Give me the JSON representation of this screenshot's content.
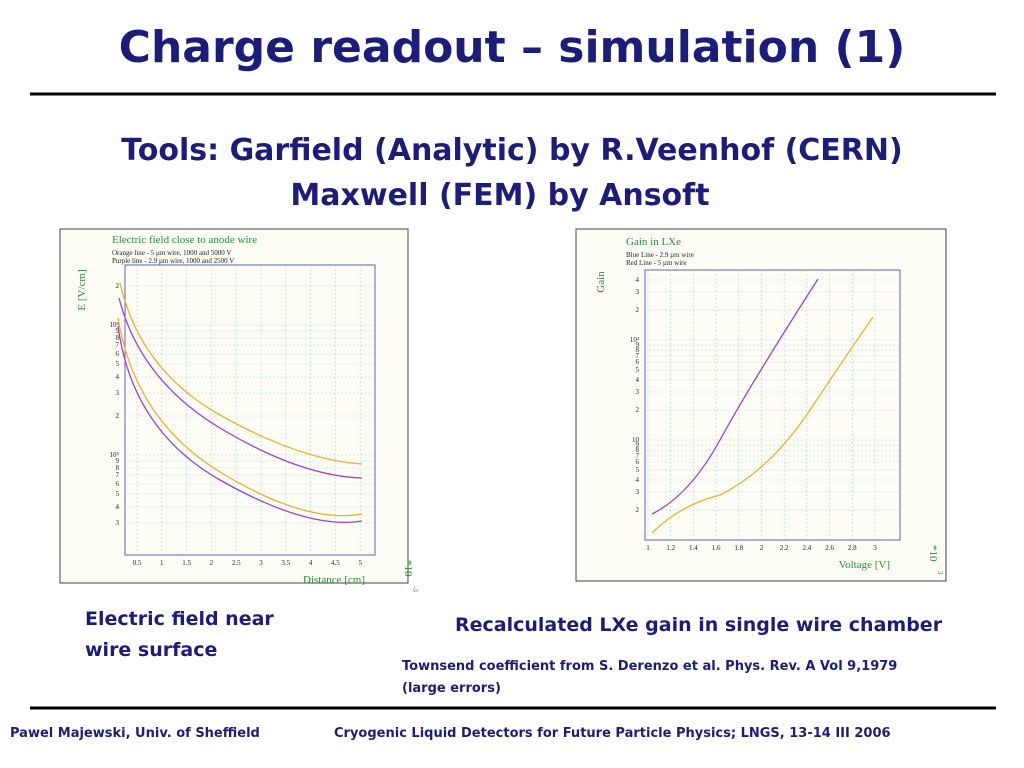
{
  "header": {
    "title": "Charge readout – simulation (1)"
  },
  "subtitle": [
    "Tools: Garfield (Analytic) by R.Veenhof (CERN)",
    "Maxwell (FEM) by Ansoft"
  ],
  "plots": [
    {
      "title": "Electric field close to anode wire",
      "legend": [
        "Orange line - 5 µm wire, 1000 and 5000 V",
        "Purple line - 2.9 µm wire, 1000 and 2500 V"
      ],
      "y_label": "E [V/cm]",
      "x_label": "Distance [cm]",
      "x_ticks": [
        "0.5",
        "1",
        "1.5",
        "2",
        "2.5",
        "3",
        "3.5",
        "4",
        "4.5",
        "5"
      ],
      "x_multiplier": "*10",
      "x_exponent": "-3",
      "y_ticks": [
        "2",
        "10⁶",
        "9",
        "8",
        "7",
        "6",
        "5",
        "4",
        "3",
        "2",
        "10⁵",
        "9",
        "8",
        "7",
        "6",
        "5",
        "4",
        "3"
      ]
    },
    {
      "title": "Gain in LXe",
      "legend": [
        "Blue Line - 2.9 µm wire",
        "Red Line - 5 µm wire"
      ],
      "y_label": "Gain",
      "x_label": "Voltage [V]",
      "x_ticks": [
        "1",
        "1.2",
        "1.4",
        "1.6",
        "1.8",
        "2",
        "2.2",
        "2.4",
        "2.6",
        "2.8",
        "3"
      ],
      "x_multiplier": "*10",
      "x_exponent": "3",
      "y_ticks": [
        "4",
        "3",
        "2",
        "10²",
        "9",
        "8",
        "7",
        "6",
        "5",
        "4",
        "3",
        "2",
        "10",
        "9",
        "8",
        "7",
        "6",
        "5",
        "4",
        "3",
        "2"
      ]
    }
  ],
  "captions": {
    "left": [
      "Electric field near",
      "wire surface"
    ],
    "right": "Recalculated LXe gain in single wire chamber",
    "note": [
      "Townsend coefficient from S. Derenzo et al. Phys. Rev. A Vol 9,1979",
      "(large errors)"
    ]
  },
  "footer": {
    "left": "Pawel Majewski, Univ. of Sheffield",
    "right": "Cryogenic Liquid Detectors for Future Particle Physics; LNGS, 13-14 III 2006"
  }
}
